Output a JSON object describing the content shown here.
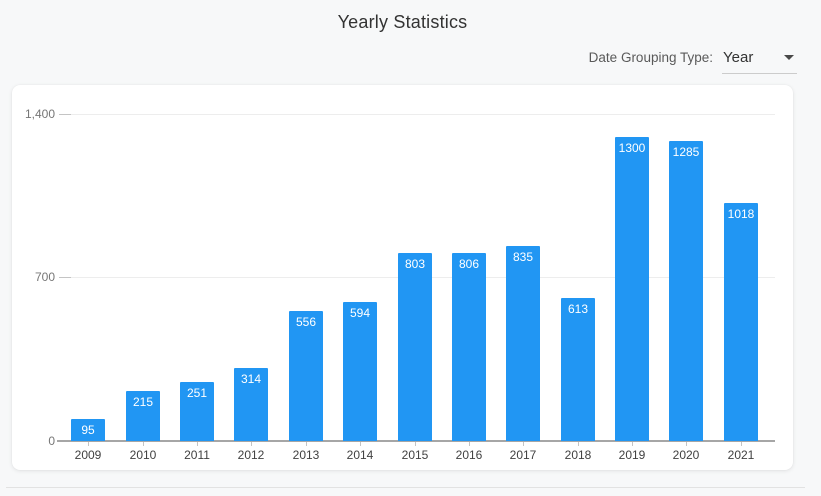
{
  "header": {
    "title": "Yearly Statistics",
    "grouping_label": "Date Grouping Type:",
    "grouping_value": "Year"
  },
  "chart_data": {
    "type": "bar",
    "title": "Yearly Statistics",
    "categories": [
      "2009",
      "2010",
      "2011",
      "2012",
      "2013",
      "2014",
      "2015",
      "2016",
      "2017",
      "2018",
      "2019",
      "2020",
      "2021"
    ],
    "values": [
      95,
      215,
      251,
      314,
      556,
      594,
      803,
      806,
      835,
      613,
      1300,
      1285,
      1018
    ],
    "xlabel": "",
    "ylabel": "",
    "ylim": [
      0,
      1400
    ],
    "yticks": [
      0,
      700,
      1400
    ],
    "ytick_labels": [
      "0",
      "700",
      "1,400"
    ],
    "bar_color": "#2196f3",
    "value_label_color": "#ffffff",
    "grid": "horizontal",
    "legend_position": "none"
  }
}
